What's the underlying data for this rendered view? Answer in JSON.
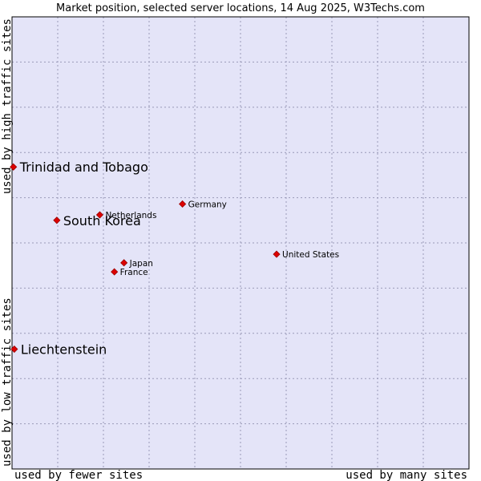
{
  "chart_data": {
    "type": "scatter",
    "title": "Market position, selected server locations, 14 Aug 2025, W3Techs.com",
    "xlabel_left": "used by fewer sites",
    "xlabel_right": "used by many sites",
    "ylabel_bottom": "used by low traffic sites",
    "ylabel_top": "used by high traffic sites",
    "xlim": [
      0,
      100
    ],
    "ylim": [
      0,
      100
    ],
    "grid": true,
    "colors": {
      "plot_bg": "#e4e4f8",
      "grid": "#9a9ab8",
      "point": "#dd0000",
      "border": "#000000"
    },
    "points": [
      {
        "label": "Trinidad and Tobago",
        "x": 0.3,
        "y": 66.8,
        "size": "large"
      },
      {
        "label": "South Korea",
        "x": 9.8,
        "y": 55.0,
        "size": "large"
      },
      {
        "label": "Liechtenstein",
        "x": 0.5,
        "y": 26.5,
        "size": "large"
      },
      {
        "label": "Netherlands",
        "x": 19.2,
        "y": 56.2,
        "size": "small"
      },
      {
        "label": "Germany",
        "x": 37.3,
        "y": 58.6,
        "size": "small"
      },
      {
        "label": "United States",
        "x": 57.9,
        "y": 47.5,
        "size": "small"
      },
      {
        "label": "Japan",
        "x": 24.5,
        "y": 45.6,
        "size": "small"
      },
      {
        "label": "France",
        "x": 22.4,
        "y": 43.6,
        "size": "small"
      }
    ]
  }
}
